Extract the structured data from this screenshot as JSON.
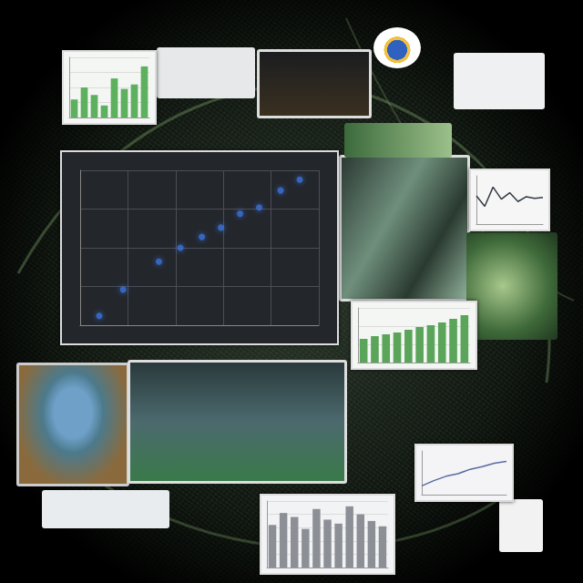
{
  "chart_data": [
    {
      "type": "scatter",
      "color": "#3a6fd8",
      "marker": "circle",
      "x": [
        0.8,
        1.8,
        3.3,
        4.2,
        5.1,
        5.9,
        6.7,
        7.5,
        8.4,
        9.2
      ],
      "values": [
        0.6,
        2.3,
        4.1,
        5.0,
        5.7,
        6.3,
        7.2,
        7.6,
        8.7,
        9.4
      ],
      "xlim": [
        0,
        10
      ],
      "xticks": [
        0,
        2,
        4,
        6,
        8,
        10
      ],
      "ylim": [
        0,
        10
      ],
      "yticks": [
        0,
        2.5,
        5,
        7.5,
        10
      ],
      "grid": true,
      "tick_labels": false
    },
    {
      "type": "bar",
      "color": "#5aa55a",
      "categories": [
        null,
        null,
        null,
        null,
        null,
        null,
        null,
        null,
        null,
        null
      ],
      "values": [
        2.6,
        2.9,
        3.1,
        3.3,
        3.6,
        3.9,
        4.1,
        4.4,
        4.8,
        5.2
      ],
      "ylim": [
        0,
        6
      ],
      "yticks": [
        0,
        2,
        4,
        6
      ],
      "grid": true,
      "tick_labels": false
    },
    {
      "type": "bar",
      "color": "#8c8f96",
      "categories": [
        null,
        null,
        null,
        null,
        null,
        null,
        null,
        null,
        null,
        null,
        null
      ],
      "values": [
        3.2,
        4.1,
        3.8,
        2.9,
        4.4,
        3.6,
        3.3,
        4.6,
        4.0,
        3.5,
        3.1
      ],
      "ylim": [
        0,
        5
      ],
      "yticks": [
        0,
        1,
        2,
        3,
        4,
        5
      ],
      "grid": true,
      "tick_labels": false
    },
    {
      "type": "line",
      "color": "#333a44",
      "categories": [
        null,
        null,
        null,
        null,
        null,
        null,
        null,
        null,
        null
      ],
      "values": [
        3.5,
        2.2,
        4.6,
        3.1,
        3.9,
        2.8,
        3.4,
        3.2,
        3.3
      ],
      "ylim": [
        0,
        6
      ],
      "yticks": [
        0,
        2,
        4,
        6
      ],
      "grid": false,
      "tick_labels": false
    },
    {
      "type": "line",
      "color": "#5b6aa0",
      "categories": [
        null,
        null,
        null,
        null,
        null,
        null,
        null,
        null
      ],
      "values": [
        1.0,
        1.6,
        2.1,
        2.4,
        2.9,
        3.2,
        3.6,
        3.8
      ],
      "ylim": [
        0,
        5
      ],
      "yticks": [
        0,
        1,
        2,
        3,
        4,
        5
      ],
      "grid": false,
      "tick_labels": false
    },
    {
      "type": "bar",
      "color": "#5db05d",
      "categories": [
        null,
        null,
        null,
        null,
        null,
        null,
        null,
        null
      ],
      "values": [
        1.2,
        2.0,
        1.5,
        0.8,
        2.6,
        1.9,
        2.2,
        3.4
      ],
      "ylim": [
        0,
        4
      ],
      "yticks": [
        0,
        1,
        2,
        3,
        4
      ],
      "grid": true,
      "tick_labels": false
    }
  ]
}
